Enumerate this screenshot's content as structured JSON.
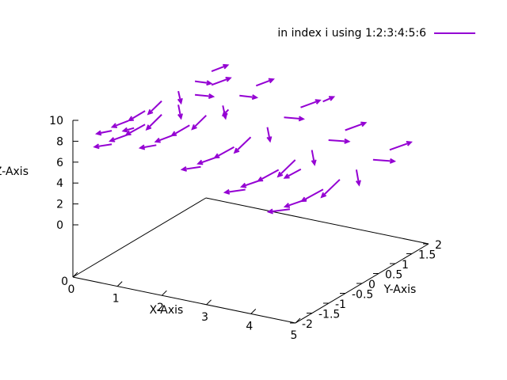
{
  "chart_data": {
    "type": "vector-field-3d",
    "title": "",
    "xlabel": "X-Axis",
    "ylabel": "Y-Axis",
    "zlabel": "Z-Axis",
    "xlim": [
      0,
      5
    ],
    "ylim": [
      -2,
      2
    ],
    "zlim": [
      0,
      10
    ],
    "x_ticks": [
      "0",
      "1",
      "2",
      "3",
      "4",
      "5"
    ],
    "y_ticks": [
      "-2",
      "-1.5",
      "-1",
      "-0.5",
      "0",
      "0.5",
      "1",
      "1.5",
      "2"
    ],
    "z_ticks": [
      "0",
      "2",
      "4",
      "6",
      "8",
      "10"
    ],
    "series": [
      {
        "name": "in index i using 1:2:3:4:5:6",
        "color": "#9400D3",
        "columns": [
          "x",
          "y",
          "z",
          "dx",
          "dy",
          "dz"
        ],
        "vectors": [
          [
            0.5,
            -1.5,
            8.5,
            0.0,
            -0.28,
            0.35
          ],
          [
            0.5,
            -1.0,
            8.5,
            0.0,
            -0.3,
            0.2
          ],
          [
            0.5,
            -0.5,
            8.5,
            0.0,
            -0.3,
            0.0
          ],
          [
            0.5,
            0.0,
            8.5,
            0.0,
            -0.25,
            -0.3
          ],
          [
            0.5,
            0.5,
            8.5,
            0.0,
            0.05,
            -0.8
          ],
          [
            0.5,
            1.0,
            8.5,
            0.0,
            0.3,
            -0.7
          ],
          [
            0.5,
            1.5,
            8.5,
            0.0,
            0.3,
            -0.2
          ],
          [
            0.5,
            -1.5,
            7.2,
            0.0,
            -0.32,
            0.45
          ],
          [
            0.5,
            -1.0,
            7.2,
            0.0,
            -0.34,
            0.25
          ],
          [
            0.5,
            -0.5,
            7.2,
            0.0,
            -0.35,
            0.05
          ],
          [
            0.5,
            0.0,
            7.2,
            0.0,
            -0.28,
            -0.35
          ],
          [
            0.5,
            0.5,
            7.2,
            0.0,
            0.05,
            -0.9
          ],
          [
            0.5,
            1.0,
            7.2,
            0.0,
            0.34,
            -0.75
          ],
          [
            0.5,
            1.5,
            7.2,
            0.0,
            0.35,
            -0.25
          ],
          [
            1.5,
            -1.5,
            8.0,
            0.0,
            -0.3,
            0.4
          ],
          [
            1.5,
            -1.0,
            8.0,
            0.0,
            -0.32,
            0.22
          ],
          [
            1.5,
            -0.5,
            8.0,
            0.0,
            -0.33,
            0.02
          ],
          [
            1.5,
            0.0,
            8.0,
            0.0,
            -0.26,
            -0.32
          ],
          [
            1.5,
            0.5,
            8.0,
            0.0,
            0.05,
            -0.85
          ],
          [
            1.5,
            1.0,
            8.0,
            0.0,
            0.32,
            -0.72
          ],
          [
            1.5,
            1.5,
            8.0,
            0.0,
            0.32,
            -0.22
          ],
          [
            2.5,
            -1.5,
            6.8,
            0.0,
            -0.35,
            0.5
          ],
          [
            2.5,
            -1.0,
            6.8,
            0.0,
            -0.36,
            0.28
          ],
          [
            2.5,
            -0.5,
            6.8,
            0.0,
            -0.36,
            0.05
          ],
          [
            2.5,
            0.0,
            6.8,
            0.0,
            -0.3,
            -0.35
          ],
          [
            2.5,
            0.5,
            6.8,
            0.0,
            0.05,
            -0.92
          ],
          [
            2.5,
            1.0,
            6.8,
            0.0,
            0.36,
            -0.78
          ],
          [
            2.5,
            1.5,
            6.8,
            0.0,
            0.36,
            -0.26
          ],
          [
            3.5,
            -1.5,
            5.5,
            0.0,
            -0.38,
            0.55
          ],
          [
            3.5,
            -1.0,
            5.5,
            0.0,
            -0.38,
            0.3
          ],
          [
            3.5,
            -0.5,
            5.5,
            0.0,
            -0.38,
            0.06
          ],
          [
            3.5,
            0.0,
            5.5,
            0.0,
            -0.32,
            -0.38
          ],
          [
            3.5,
            0.5,
            5.5,
            0.0,
            0.05,
            -0.95
          ],
          [
            3.5,
            1.0,
            5.5,
            0.0,
            0.38,
            -0.8
          ],
          [
            3.5,
            1.5,
            5.5,
            0.0,
            0.38,
            -0.28
          ],
          [
            4.5,
            -1.5,
            4.5,
            0.0,
            -0.4,
            0.6
          ],
          [
            4.5,
            -1.0,
            4.5,
            0.0,
            -0.4,
            0.32
          ],
          [
            4.5,
            -0.5,
            4.5,
            0.0,
            -0.4,
            0.06
          ],
          [
            4.5,
            0.0,
            4.5,
            0.0,
            -0.34,
            -0.4
          ],
          [
            4.5,
            0.5,
            4.5,
            0.0,
            0.05,
            -1.0
          ],
          [
            4.5,
            1.0,
            4.5,
            0.0,
            0.4,
            -0.85
          ],
          [
            4.5,
            1.5,
            4.5,
            0.0,
            0.4,
            -0.3
          ],
          [
            1.0,
            -1.5,
            9.2,
            0.0,
            -0.2,
            0.2
          ],
          [
            2.0,
            0.0,
            9.0,
            0.0,
            -0.1,
            -0.15
          ],
          [
            3.0,
            1.5,
            7.8,
            0.0,
            0.2,
            -0.1
          ],
          [
            4.0,
            -0.5,
            6.0,
            0.0,
            -0.3,
            0.05
          ]
        ]
      }
    ]
  }
}
